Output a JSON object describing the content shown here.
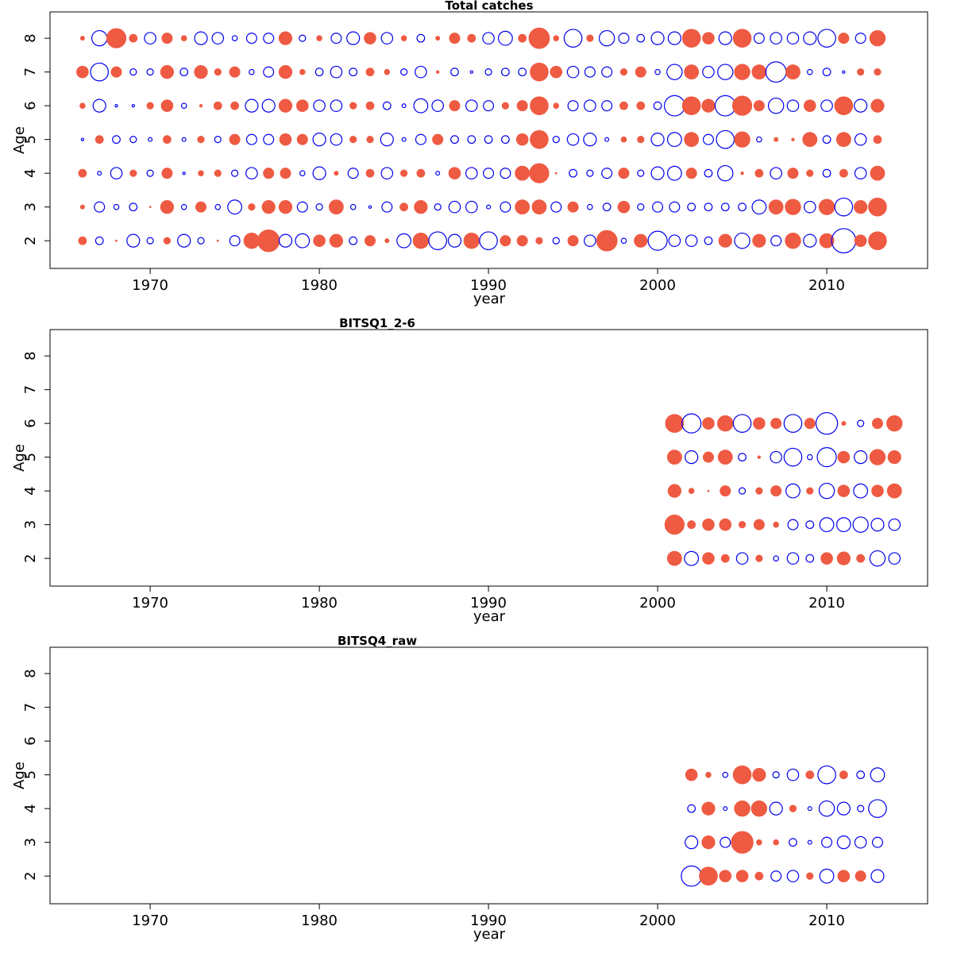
{
  "chart_data": [
    {
      "type": "bubble",
      "title": "Total catches",
      "xlabel": "year",
      "ylabel": "Age",
      "xlim": [
        1964.08,
        2015.96
      ],
      "ylim": [
        1.18,
        8.78
      ],
      "xticks": [
        1970,
        1980,
        1990,
        2000,
        2010
      ],
      "yticks": [
        2,
        3,
        4,
        5,
        6,
        7,
        8
      ],
      "positive_color": "#ee5a42",
      "negative_color": "#0000ee",
      "x": [
        1966,
        1967,
        1968,
        1969,
        1970,
        1971,
        1972,
        1973,
        1974,
        1975,
        1976,
        1977,
        1978,
        1979,
        1980,
        1981,
        1982,
        1983,
        1984,
        1985,
        1986,
        1987,
        1988,
        1989,
        1990,
        1991,
        1992,
        1993,
        1994,
        1995,
        1996,
        1997,
        1998,
        1999,
        2000,
        2001,
        2002,
        2003,
        2004,
        2005,
        2006,
        2007,
        2008,
        2009,
        2010,
        2011,
        2012,
        2013
      ],
      "ages": [
        2,
        3,
        4,
        5,
        6,
        7,
        8
      ],
      "values": [
        [
          0.6,
          -0.6,
          0.1,
          -1.0,
          -0.5,
          0.5,
          -1.0,
          -0.5,
          0.1,
          -0.8,
          1.2,
          1.7,
          -1.0,
          -1.1,
          0.9,
          1.0,
          -0.6,
          0.8,
          0.3,
          -1.1,
          1.2,
          -1.4,
          -1.0,
          1.2,
          -1.4,
          0.8,
          0.8,
          0.5,
          -0.5,
          0.8,
          -0.9,
          1.6,
          -0.4,
          1.0,
          -1.5,
          -0.9,
          -0.9,
          -0.6,
          1.0,
          -1.2,
          1.0,
          -0.8,
          1.2,
          -1.0,
          1.1,
          -1.9,
          0.9,
          1.4
        ],
        [
          0.3,
          -0.8,
          -0.4,
          -0.6,
          0.1,
          1.0,
          -0.4,
          0.8,
          -0.4,
          -1.1,
          0.5,
          1.0,
          1.0,
          -0.8,
          -0.5,
          1.1,
          -0.4,
          -0.2,
          -0.8,
          0.6,
          1.0,
          -0.5,
          -0.9,
          -0.9,
          -0.3,
          -0.8,
          1.1,
          1.1,
          -0.8,
          0.8,
          -0.4,
          -0.6,
          0.9,
          -0.5,
          -0.8,
          -0.8,
          -0.6,
          -0.6,
          -0.6,
          -0.6,
          -1.1,
          1.1,
          1.2,
          -0.9,
          1.2,
          -1.4,
          1.0,
          1.4
        ],
        [
          0.6,
          -0.3,
          -0.9,
          0.5,
          -0.5,
          0.8,
          -0.2,
          0.4,
          0.5,
          -0.5,
          -0.9,
          0.8,
          0.8,
          -0.4,
          -1.0,
          0.3,
          -0.8,
          0.6,
          -0.9,
          0.5,
          0.6,
          -0.3,
          0.9,
          -0.9,
          -0.8,
          -0.8,
          1.1,
          1.5,
          0.1,
          -0.6,
          -0.5,
          -0.8,
          0.8,
          -0.5,
          -1.0,
          -1.1,
          0.8,
          -0.6,
          -1.2,
          0.2,
          0.6,
          -0.9,
          0.8,
          0.5,
          -0.6,
          0.6,
          -0.9,
          1.1
        ],
        [
          -0.2,
          0.6,
          -0.6,
          -0.5,
          -0.3,
          0.6,
          -0.3,
          0.5,
          -0.5,
          0.8,
          -0.8,
          -0.8,
          0.9,
          0.8,
          -1.0,
          -0.9,
          0.5,
          0.5,
          -1.0,
          -0.3,
          -0.8,
          0.8,
          -0.6,
          -0.6,
          -0.6,
          -0.6,
          0.9,
          1.4,
          -0.5,
          -0.9,
          -1.0,
          -0.3,
          0.4,
          0.5,
          -1.0,
          -1.1,
          1.1,
          -0.8,
          -1.4,
          1.2,
          -0.4,
          0.3,
          0.2,
          1.1,
          -0.6,
          1.1,
          -0.9,
          0.6
        ],
        [
          0.4,
          -1.0,
          -0.2,
          -0.2,
          0.5,
          0.9,
          -0.4,
          0.2,
          0.6,
          0.6,
          -1.0,
          -1.0,
          1.0,
          0.9,
          -0.9,
          -0.9,
          0.5,
          0.6,
          -0.6,
          -0.3,
          -1.1,
          -0.9,
          0.8,
          -0.9,
          -0.8,
          0.5,
          0.8,
          1.4,
          0.4,
          -0.8,
          -0.9,
          -0.8,
          0.6,
          0.6,
          -0.6,
          -1.6,
          1.4,
          1.0,
          -1.6,
          1.5,
          0.8,
          -1.2,
          -0.9,
          0.9,
          -0.9,
          1.4,
          -1.0,
          1.0
        ],
        [
          0.9,
          -1.4,
          0.8,
          -0.5,
          -0.5,
          1.0,
          -0.6,
          1.0,
          0.5,
          0.8,
          -0.4,
          -0.8,
          1.0,
          0.4,
          -0.6,
          -0.9,
          -0.6,
          0.6,
          0.4,
          -0.5,
          -0.9,
          0.2,
          -0.6,
          -0.2,
          -0.5,
          -0.6,
          -0.6,
          1.4,
          0.9,
          -0.9,
          -0.8,
          -0.8,
          0.5,
          0.8,
          -0.4,
          -1.2,
          1.1,
          -0.9,
          -1.2,
          1.2,
          1.1,
          -1.6,
          1.1,
          -0.4,
          -0.6,
          -0.2,
          0.5,
          0.5
        ],
        [
          0.3,
          -1.2,
          1.5,
          0.6,
          -0.9,
          0.8,
          0.4,
          -1.0,
          -0.9,
          -0.4,
          -0.8,
          -0.8,
          1.0,
          -0.5,
          0.4,
          -0.8,
          -1.0,
          0.9,
          -0.9,
          0.4,
          -0.6,
          0.3,
          0.8,
          0.6,
          -0.9,
          -1.1,
          0.6,
          1.6,
          0.4,
          -1.4,
          0.5,
          -1.2,
          -0.8,
          -0.6,
          -1.0,
          -1.0,
          1.4,
          0.9,
          -1.0,
          1.4,
          -0.8,
          -0.9,
          -0.9,
          -1.0,
          -1.4,
          0.8,
          -0.8,
          1.2
        ]
      ]
    },
    {
      "type": "bubble",
      "title": "BITSQ1_2-6",
      "xlabel": "year",
      "ylabel": "Age",
      "xlim": [
        1964.08,
        2015.96
      ],
      "ylim": [
        1.18,
        8.78
      ],
      "xticks": [
        1970,
        1980,
        1990,
        2000,
        2010
      ],
      "yticks": [
        2,
        3,
        4,
        5,
        6,
        7,
        8
      ],
      "positive_color": "#ee5a42",
      "negative_color": "#0000ee",
      "x": [
        2001,
        2002,
        2003,
        2004,
        2005,
        2006,
        2007,
        2008,
        2009,
        2010,
        2011,
        2012,
        2013,
        2014
      ],
      "ages": [
        2,
        3,
        4,
        5,
        6
      ],
      "values": [
        [
          1.1,
          -1.1,
          0.9,
          0.6,
          -0.9,
          0.5,
          -0.4,
          -0.9,
          -0.6,
          0.9,
          1.0,
          0.6,
          -1.2,
          -0.9
        ],
        [
          1.5,
          0.6,
          0.9,
          0.9,
          0.5,
          0.8,
          0.4,
          -0.8,
          -0.6,
          -1.1,
          -1.1,
          -1.2,
          -1.0,
          -0.9
        ],
        [
          1.0,
          0.4,
          0.1,
          0.8,
          -0.5,
          0.5,
          0.8,
          -1.1,
          0.5,
          -1.2,
          0.9,
          -1.1,
          0.9,
          1.1
        ],
        [
          1.1,
          -1.0,
          0.8,
          1.1,
          -0.6,
          0.2,
          -0.9,
          -1.4,
          -0.4,
          -1.5,
          0.9,
          -1.0,
          1.2,
          1.0
        ],
        [
          1.4,
          -1.5,
          0.9,
          1.2,
          -1.4,
          0.9,
          0.8,
          -1.4,
          0.8,
          -1.7,
          0.3,
          -0.5,
          0.8,
          1.2
        ]
      ]
    },
    {
      "type": "bubble",
      "title": "BITSQ4_raw",
      "xlabel": "year",
      "ylabel": "Age",
      "xlim": [
        1964.08,
        2015.96
      ],
      "ylim": [
        1.18,
        8.78
      ],
      "xticks": [
        1970,
        1980,
        1990,
        2000,
        2010
      ],
      "yticks": [
        2,
        3,
        4,
        5,
        6,
        7,
        8
      ],
      "positive_color": "#ee5a42",
      "negative_color": "#0000ee",
      "x": [
        2002,
        2003,
        2004,
        2005,
        2006,
        2007,
        2008,
        2009,
        2010,
        2011,
        2012,
        2013
      ],
      "ages": [
        2,
        3,
        4,
        5
      ],
      "values": [
        [
          -1.6,
          1.4,
          0.9,
          0.9,
          0.6,
          -0.8,
          -0.9,
          0.5,
          -1.1,
          0.9,
          0.8,
          -1.0
        ],
        [
          -1.0,
          1.0,
          -0.8,
          1.7,
          0.4,
          0.4,
          -0.6,
          -0.3,
          -0.8,
          -1.0,
          -0.9,
          -0.8
        ],
        [
          -0.6,
          1.0,
          -0.3,
          1.2,
          1.2,
          -1.0,
          0.5,
          -0.3,
          -1.2,
          -1.0,
          -0.5,
          -1.4
        ],
        [
          0.9,
          0.4,
          -0.4,
          1.4,
          1.0,
          -0.5,
          -0.9,
          0.6,
          -1.4,
          0.6,
          -0.6,
          -1.1
        ]
      ]
    }
  ]
}
